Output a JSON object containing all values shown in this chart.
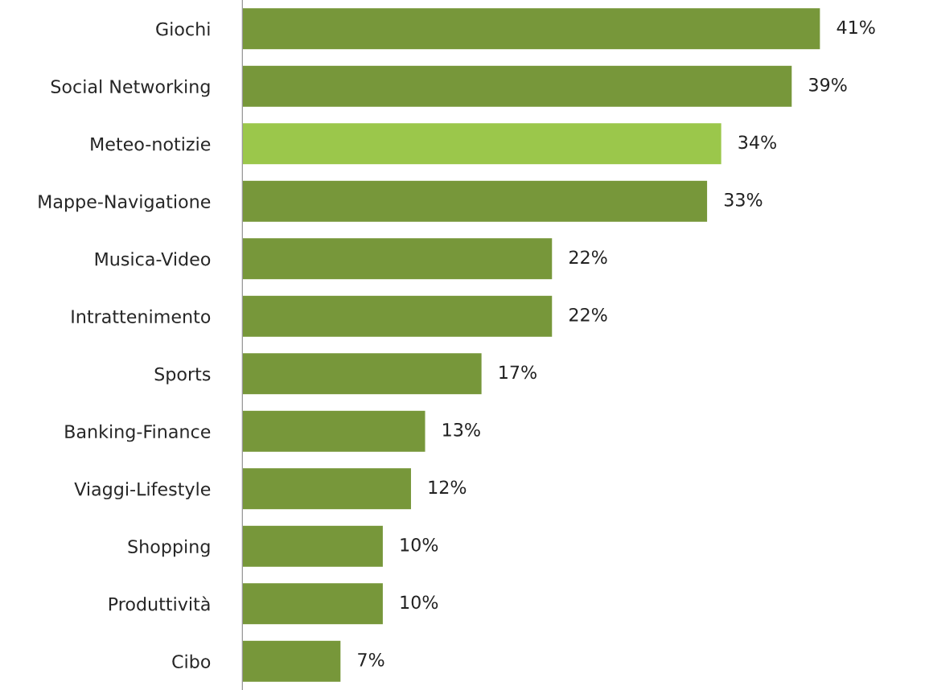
{
  "chart_data": {
    "type": "bar",
    "orientation": "horizontal",
    "categories": [
      "Giochi",
      "Social Networking",
      "Meteo-notizie",
      "Mappe-Navigatione",
      "Musica-Video",
      "Intrattenimento",
      "Sports",
      "Banking-Finance",
      "Viaggi-Lifestyle",
      "Shopping",
      "Produttività",
      "Cibo"
    ],
    "values": [
      41,
      39,
      34,
      33,
      22,
      22,
      17,
      13,
      12,
      10,
      10,
      7
    ],
    "colors": [
      "#77973a",
      "#77973a",
      "#9bc74b",
      "#77973a",
      "#77973a",
      "#77973a",
      "#77973a",
      "#77973a",
      "#77973a",
      "#77973a",
      "#77973a",
      "#77973a"
    ],
    "value_labels": [
      "41%",
      "39%",
      "34%",
      "33%",
      "22%",
      "22%",
      "17%",
      "13%",
      "12%",
      "10%",
      "10%",
      "7%"
    ],
    "grid": false,
    "legend": false
  }
}
